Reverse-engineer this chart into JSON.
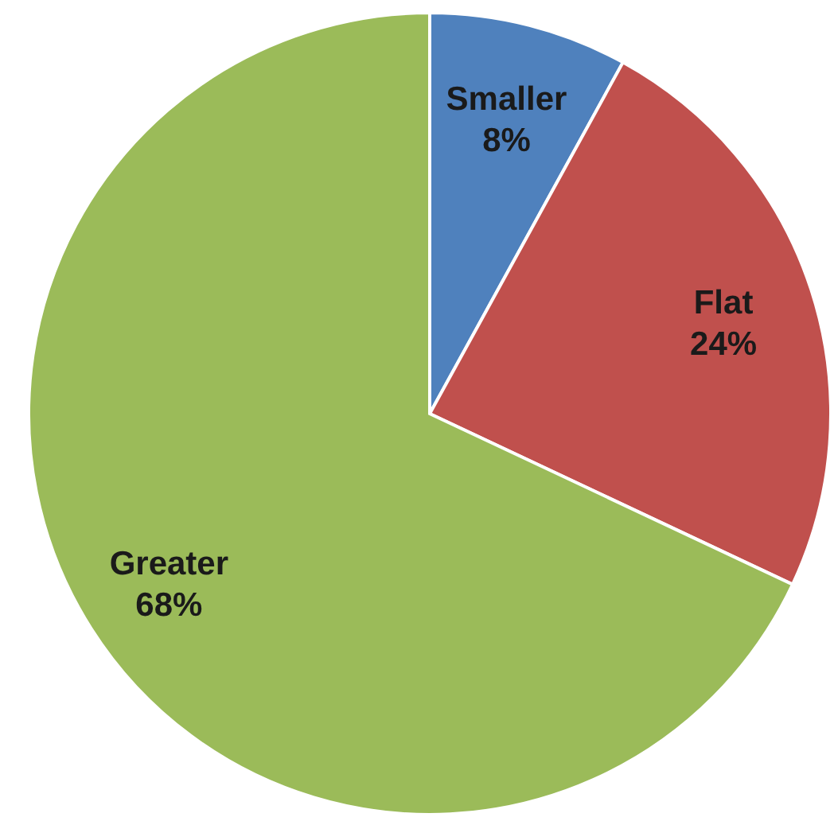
{
  "chart_data": {
    "type": "pie",
    "categories": [
      "Smaller",
      "Flat",
      "Greater"
    ],
    "values": [
      8,
      24,
      68
    ],
    "colors": [
      "#4f81bd",
      "#c0504d",
      "#9bbb59"
    ],
    "value_labels": [
      "8%",
      "24%",
      "68%"
    ]
  }
}
